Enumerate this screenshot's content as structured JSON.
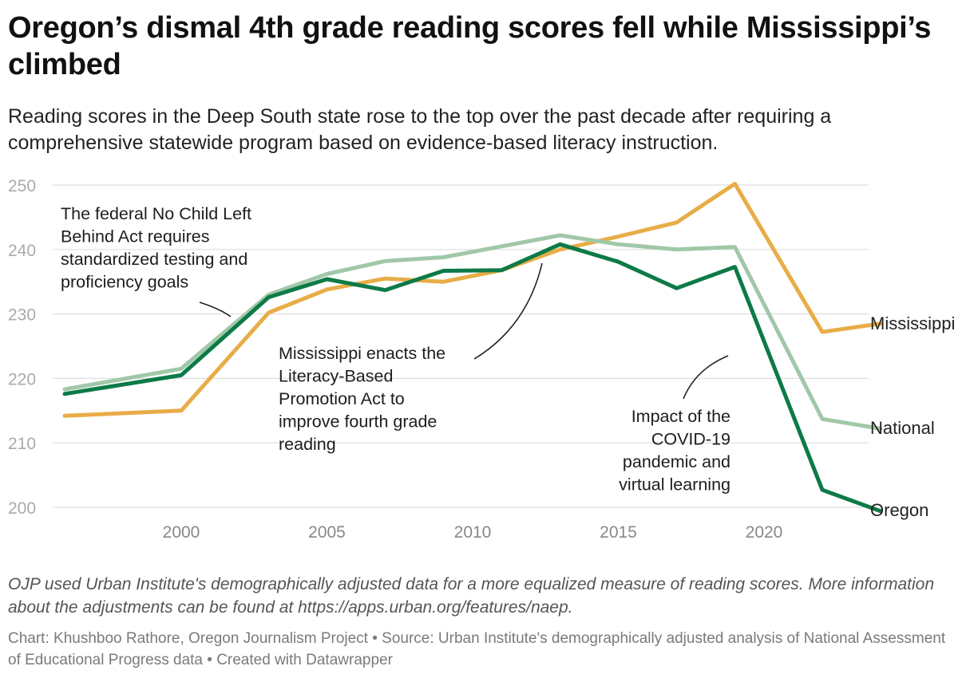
{
  "title": "Oregon’s dismal 4th grade reading scores fell while Mississippi’s climbed",
  "subtitle": "Reading scores in the Deep South state rose to the top over the past decade after requiring a comprehensive statewide program based on evidence-based literacy instruction.",
  "note": "OJP used Urban Institute's demographically adjusted data for a more equalized measure of reading scores. More information about the adjustments can be found at https://apps.urban.org/features/naep.",
  "credit": "Chart: Khushboo Rathore, Oregon Journalism Project • Source: Urban Institute's demographically adjusted analysis of National Assessment of Educational Progress data • Created with Datawrapper",
  "chart_data": {
    "type": "line",
    "title": "Oregon’s dismal 4th grade reading scores fell while Mississippi’s climbed",
    "xlabel": "",
    "ylabel": "",
    "xlim": [
      1996,
      2024
    ],
    "ylim": [
      200,
      250
    ],
    "x_ticks": [
      2000,
      2005,
      2010,
      2015,
      2020
    ],
    "y_ticks": [
      200,
      210,
      220,
      230,
      240,
      250
    ],
    "grid": "horizontal",
    "series": [
      {
        "name": "Mississippi",
        "color": "#e8ad47",
        "x": [
          1996,
          2000,
          2003,
          2005,
          2007,
          2009,
          2011,
          2013,
          2015,
          2017,
          2019,
          2022,
          2024
        ],
        "values": [
          214.2,
          215.0,
          230.2,
          233.8,
          235.5,
          235.0,
          236.8,
          240.0,
          242.0,
          244.2,
          250.2,
          227.2,
          228.5
        ]
      },
      {
        "name": "National",
        "color": "#a0c8a8",
        "x": [
          1996,
          2000,
          2003,
          2005,
          2007,
          2009,
          2011,
          2013,
          2015,
          2017,
          2019,
          2022,
          2024
        ],
        "values": [
          218.3,
          221.5,
          233.0,
          236.2,
          238.2,
          238.8,
          240.5,
          242.2,
          240.8,
          240.0,
          240.4,
          213.7,
          212.2
        ]
      },
      {
        "name": "Oregon",
        "color": "#0d7a47",
        "x": [
          1996,
          2000,
          2003,
          2005,
          2007,
          2009,
          2011,
          2013,
          2015,
          2017,
          2019,
          2022,
          2024
        ],
        "values": [
          217.6,
          220.5,
          232.6,
          235.4,
          233.7,
          236.7,
          236.8,
          240.8,
          238.1,
          234.0,
          237.3,
          202.7,
          199.4
        ]
      }
    ],
    "annotations": [
      {
        "name": "nclb",
        "text": [
          "The federal No Child Left",
          "Behind Act requires",
          "standardized testing and",
          "proficiency goals"
        ]
      },
      {
        "name": "literacy",
        "text": [
          "Mississippi enacts the",
          "Literacy-Based",
          "Promotion Act to",
          "improve fourth grade",
          "reading"
        ]
      },
      {
        "name": "covid",
        "text": [
          "Impact of the",
          "COVID-19",
          "pandemic and",
          "virtual learning"
        ]
      }
    ]
  }
}
